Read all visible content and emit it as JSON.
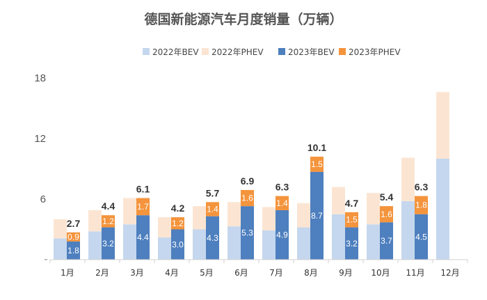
{
  "chart_data": {
    "type": "bar",
    "title": "德国新能源汽车月度销量（万辆）",
    "xlabel": "",
    "ylabel": "",
    "ylim": [
      0,
      18
    ],
    "yticks": [
      "6",
      "12",
      "18"
    ],
    "categories": [
      "1月",
      "2月",
      "3月",
      "4月",
      "5月",
      "6月",
      "7月",
      "8月",
      "9月",
      "10月",
      "11月",
      "12月"
    ],
    "series": [
      {
        "name": "2022年BEV",
        "year": "2022",
        "kind": "BEV",
        "color": "#c5d7ee",
        "values": [
          2.1,
          2.8,
          3.5,
          2.2,
          3.0,
          3.3,
          2.9,
          3.2,
          4.5,
          3.5,
          5.8,
          10.0
        ]
      },
      {
        "name": "2022年PHEV",
        "year": "2022",
        "kind": "PHEV",
        "color": "#fbe5d2",
        "values": [
          1.9,
          2.1,
          2.6,
          2.0,
          2.3,
          2.4,
          2.3,
          2.4,
          2.7,
          3.1,
          4.3,
          6.6
        ]
      },
      {
        "name": "2023年BEV",
        "year": "2023",
        "kind": "BEV",
        "color": "#4e7fbe",
        "values": [
          1.8,
          3.2,
          4.4,
          3.0,
          4.3,
          5.3,
          4.9,
          8.7,
          3.2,
          3.7,
          4.5,
          null
        ],
        "labels": [
          "1.8",
          "3.2",
          "4.4",
          "3.0",
          "4.3",
          "5.3",
          "4.9",
          "8.7",
          "3.2",
          "3.7",
          "4.5",
          ""
        ]
      },
      {
        "name": "2023年PHEV",
        "year": "2023",
        "kind": "PHEV",
        "color": "#f4943c",
        "values": [
          0.9,
          1.2,
          1.7,
          1.2,
          1.4,
          1.6,
          1.4,
          1.5,
          1.5,
          1.6,
          1.8,
          null
        ],
        "labels": [
          "0.9",
          "1.2",
          "1.7",
          "1.2",
          "1.4",
          "1.6",
          "1.4",
          "1.5",
          "1.5",
          "1.6",
          "1.8",
          ""
        ]
      }
    ],
    "totals_2023": [
      "2.7",
      "4.4",
      "6.1",
      "4.2",
      "5.7",
      "6.9",
      "6.3",
      "10.1",
      "4.7",
      "5.4",
      "6.3",
      ""
    ],
    "legend_position": "top-center",
    "grid": false
  }
}
